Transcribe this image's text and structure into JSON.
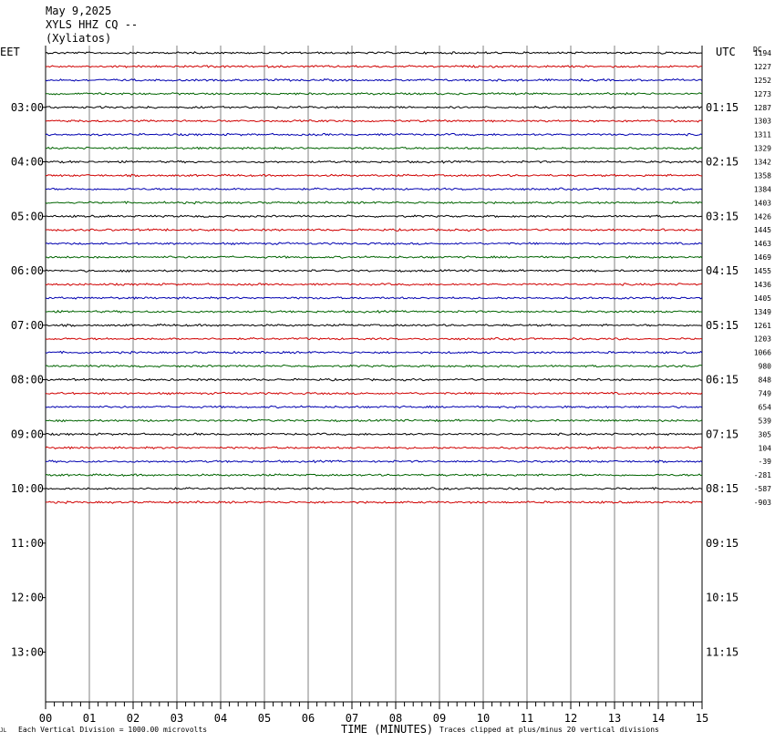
{
  "header": {
    "date": "May 9,2025",
    "station": "XYLS HHZ CQ --",
    "location": "(Xyliatos)"
  },
  "chart_data": {
    "type": "line",
    "title": "XYLS HHZ CQ --",
    "left_axis_label": "EET",
    "right_axis_label": "UTC",
    "dc_header": "DC",
    "xlabel": "TIME (MINUTES)",
    "xlim": [
      0,
      15
    ],
    "x_tick_labels": [
      "00",
      "01",
      "02",
      "03",
      "04",
      "05",
      "06",
      "07",
      "08",
      "09",
      "10",
      "11",
      "12",
      "13",
      "14",
      "15"
    ],
    "left_hour_labels": [
      "03:00",
      "04:00",
      "05:00",
      "06:00",
      "07:00",
      "08:00",
      "09:00",
      "10:00",
      "11:00",
      "12:00",
      "13:00"
    ],
    "right_hour_labels": [
      "01:15",
      "02:15",
      "03:15",
      "04:15",
      "05:15",
      "06:15",
      "07:15",
      "08:15",
      "09:15",
      "10:15",
      "11:15"
    ],
    "trace_colors": [
      "#000000",
      "#d00000",
      "#0000b0",
      "#006400"
    ],
    "trace_dc_values": [
      "1194",
      "1227",
      "1252",
      "1273",
      "1287",
      "1303",
      "1311",
      "1329",
      "1342",
      "1358",
      "1384",
      "1403",
      "1426",
      "1445",
      "1463",
      "1469",
      "1455",
      "1436",
      "1405",
      "1349",
      "1261",
      "1203",
      "1066",
      "980",
      "848",
      "749",
      "654",
      "539",
      "305",
      "104",
      "-39",
      "-281",
      "-587",
      "-903"
    ],
    "vertical_division_note": "Each Vertical Division = 1000.00 microvolts",
    "clip_note": "Traces clipped at plus/minus 20 vertical divisions",
    "grid": true
  },
  "footer": {
    "corner_mark": "JL"
  }
}
